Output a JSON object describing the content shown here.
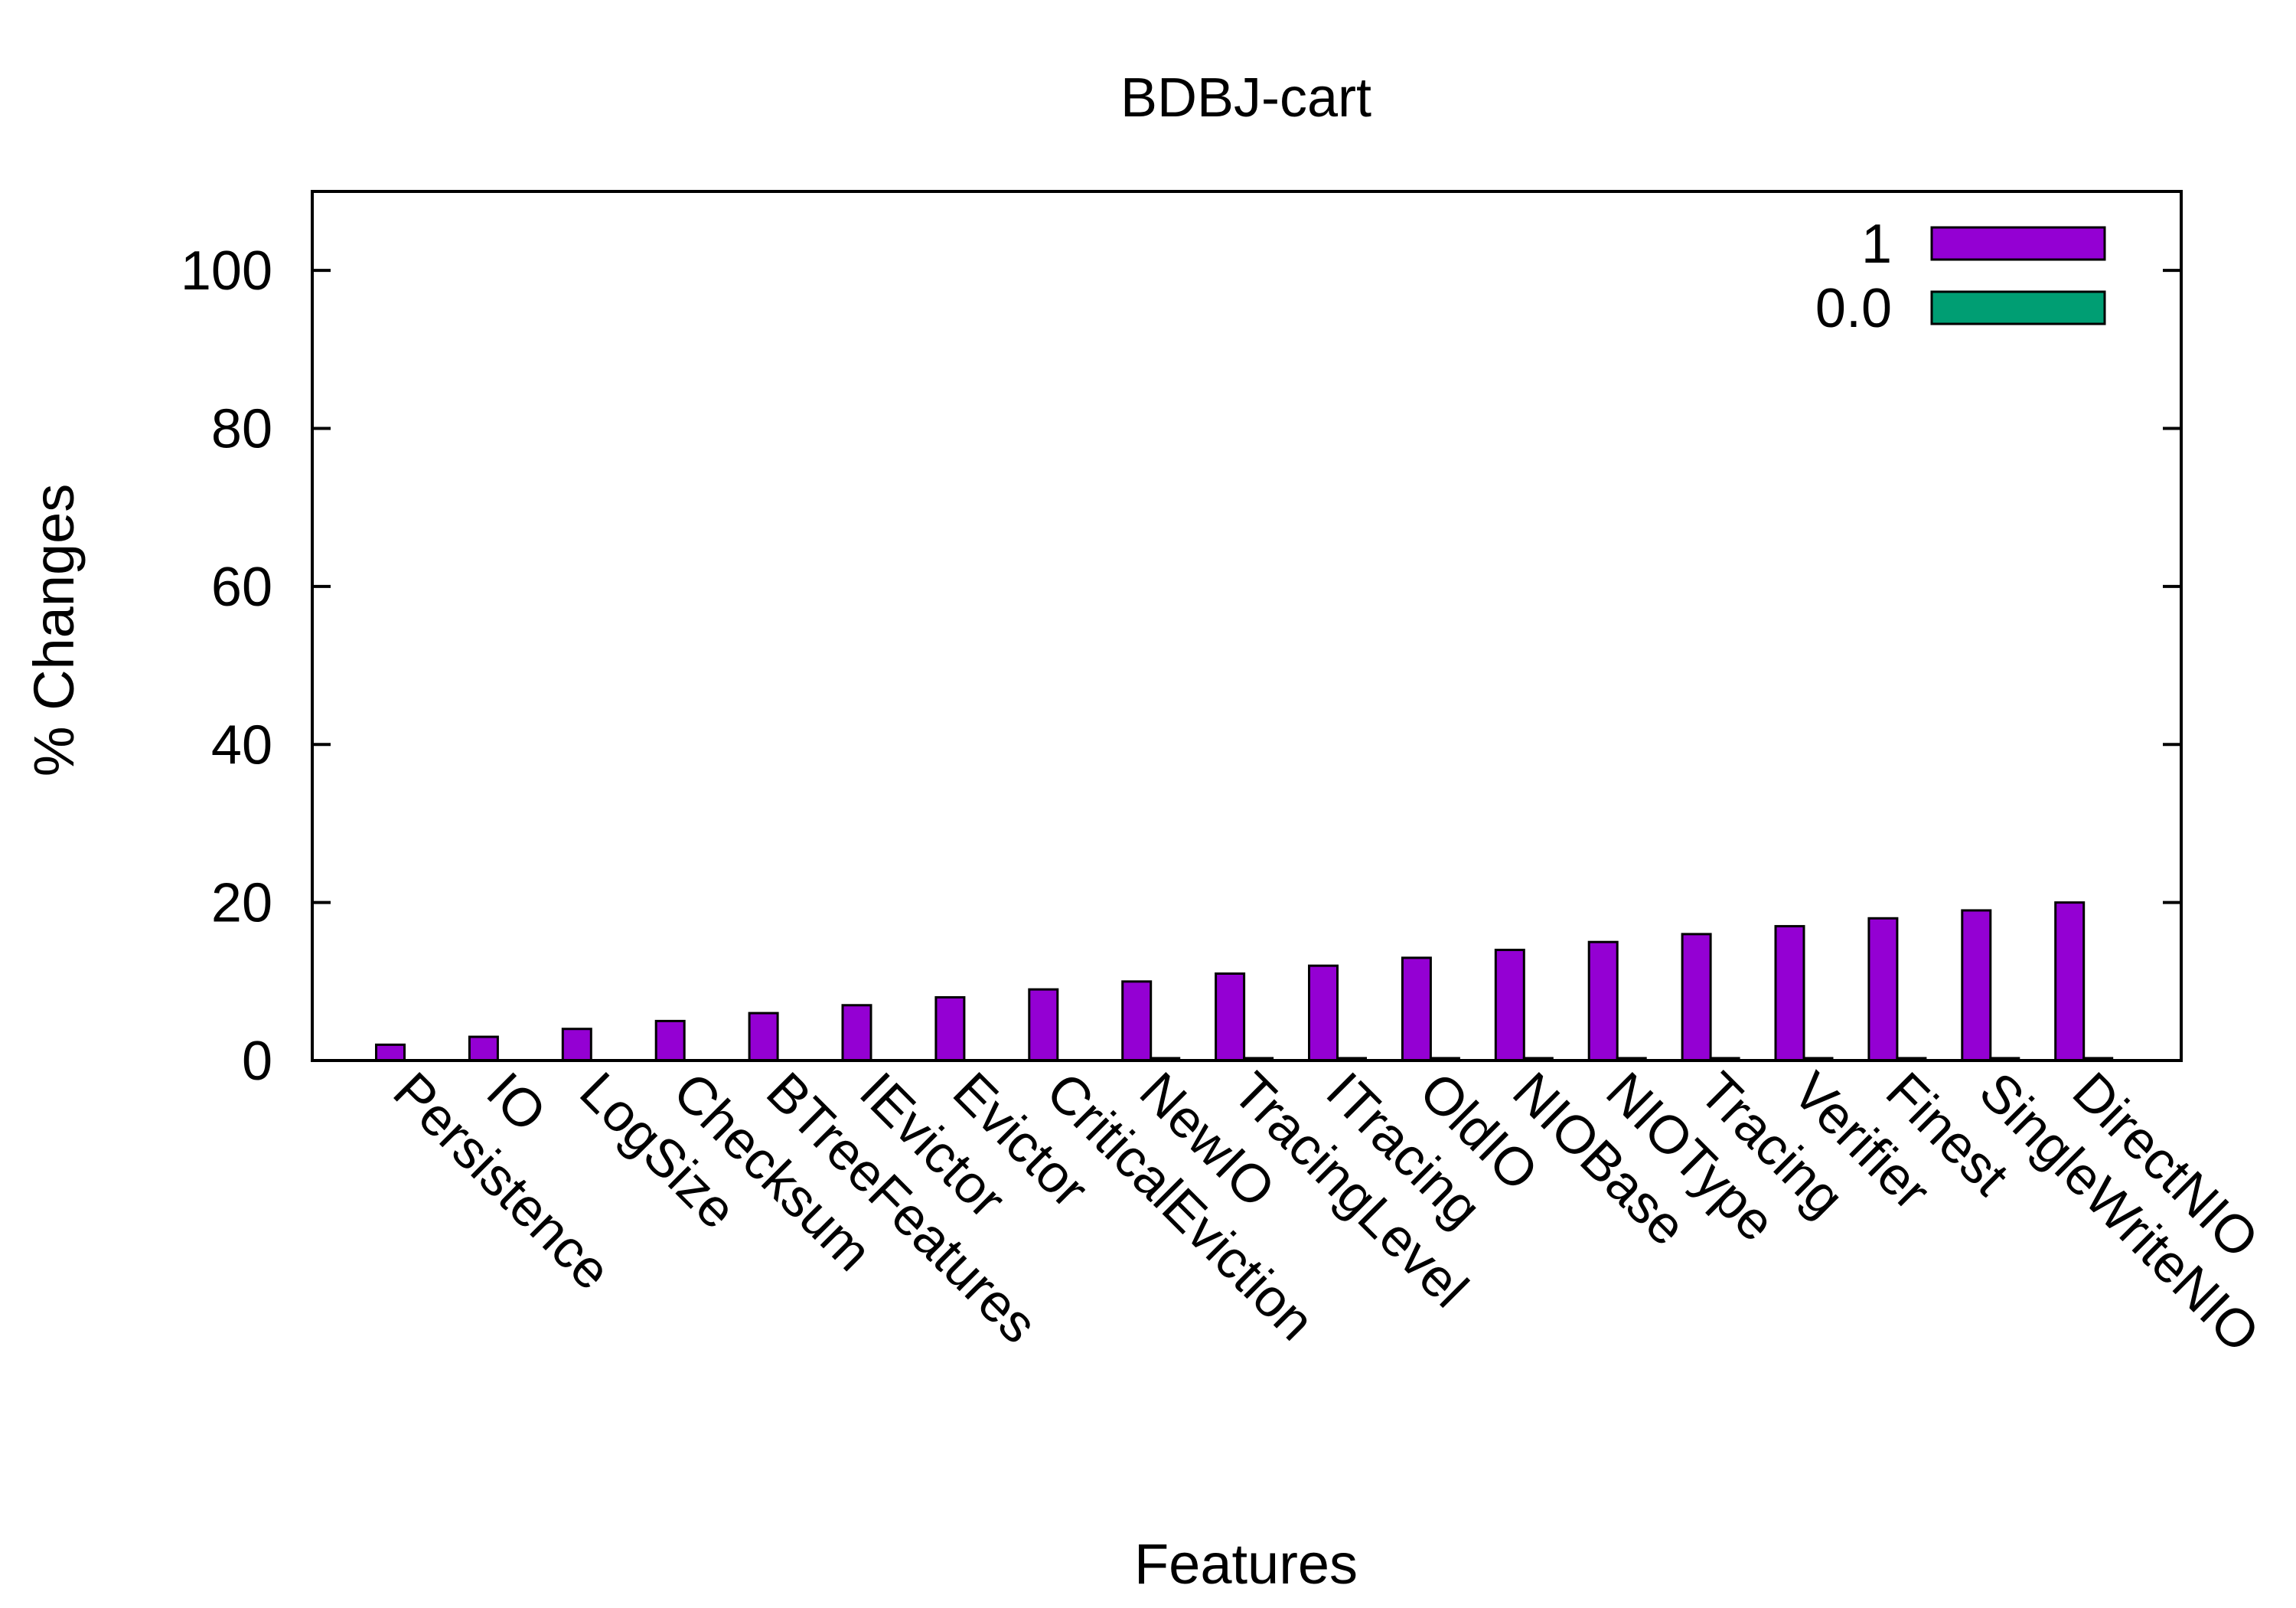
{
  "chart_data": {
    "type": "bar",
    "title": "BDBJ-cart",
    "xlabel": "Features",
    "ylabel": "% Changes",
    "ylim": [
      0,
      110
    ],
    "yticks": [
      0,
      20,
      40,
      60,
      80,
      100
    ],
    "grid": false,
    "legend_position": "top-right",
    "categories": [
      "Persistence",
      "IO",
      "LogSize",
      "Checksum",
      "BTreeFeatures",
      "IEvictor",
      "Evictor",
      "CriticalEviction",
      "NewIO",
      "TracingLevel",
      "ITracing",
      "OldIO",
      "NIOBase",
      "NIOType",
      "Tracing",
      "Verifier",
      "Finest",
      "SingleWriteNIO",
      "DirectNIO"
    ],
    "series": [
      {
        "name": "1",
        "color": "#9400d3",
        "values": [
          2,
          3,
          4,
          5,
          6,
          7,
          8,
          9,
          10,
          11,
          12,
          13,
          14,
          15,
          16,
          17,
          18,
          19,
          20
        ]
      },
      {
        "name": "0.0",
        "color": "#009e73",
        "values": [
          0,
          0,
          0,
          0,
          0,
          0,
          0,
          0,
          0.3,
          0.3,
          0.3,
          0.3,
          0.3,
          0.3,
          0.3,
          0.3,
          0.3,
          0.3,
          0.3
        ]
      }
    ]
  }
}
